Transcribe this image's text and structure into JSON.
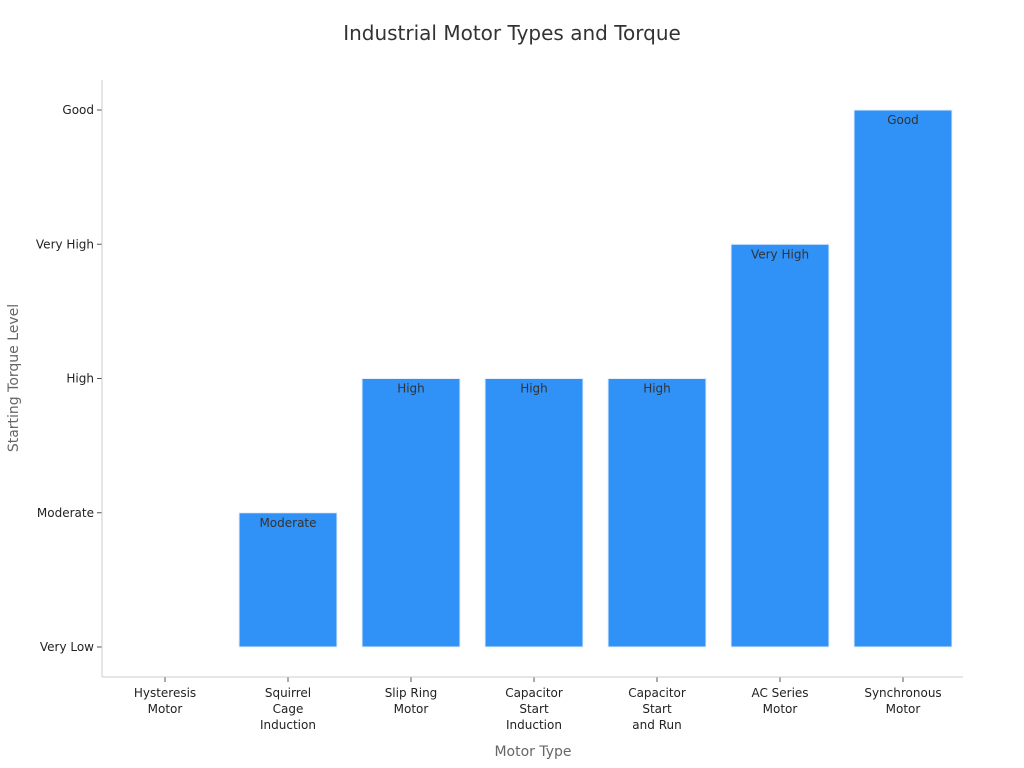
{
  "chart_data": {
    "type": "bar",
    "title": "Industrial Motor Types and Torque",
    "xlabel": "Motor Type",
    "ylabel": "Starting Torque Level",
    "y_levels": [
      "Very Low",
      "Moderate",
      "High",
      "Very High",
      "Good"
    ],
    "ylim": [
      0,
      4
    ],
    "categories": [
      [
        "Hysteresis",
        "Motor"
      ],
      [
        "Squirrel",
        "Cage",
        "Induction"
      ],
      [
        "Slip Ring",
        "Motor"
      ],
      [
        "Capacitor",
        "Start",
        "Induction"
      ],
      [
        "Capacitor",
        "Start",
        "and Run"
      ],
      [
        "AC Series",
        "Motor"
      ],
      [
        "Synchronous",
        "Motor"
      ]
    ],
    "values": [
      0,
      1,
      2,
      2,
      2,
      3,
      4
    ],
    "data_labels": [
      "",
      "Moderate",
      "High",
      "High",
      "High",
      "Very High",
      "Good"
    ],
    "bar_color": "#3091f7",
    "grid": false,
    "legend": "none"
  }
}
